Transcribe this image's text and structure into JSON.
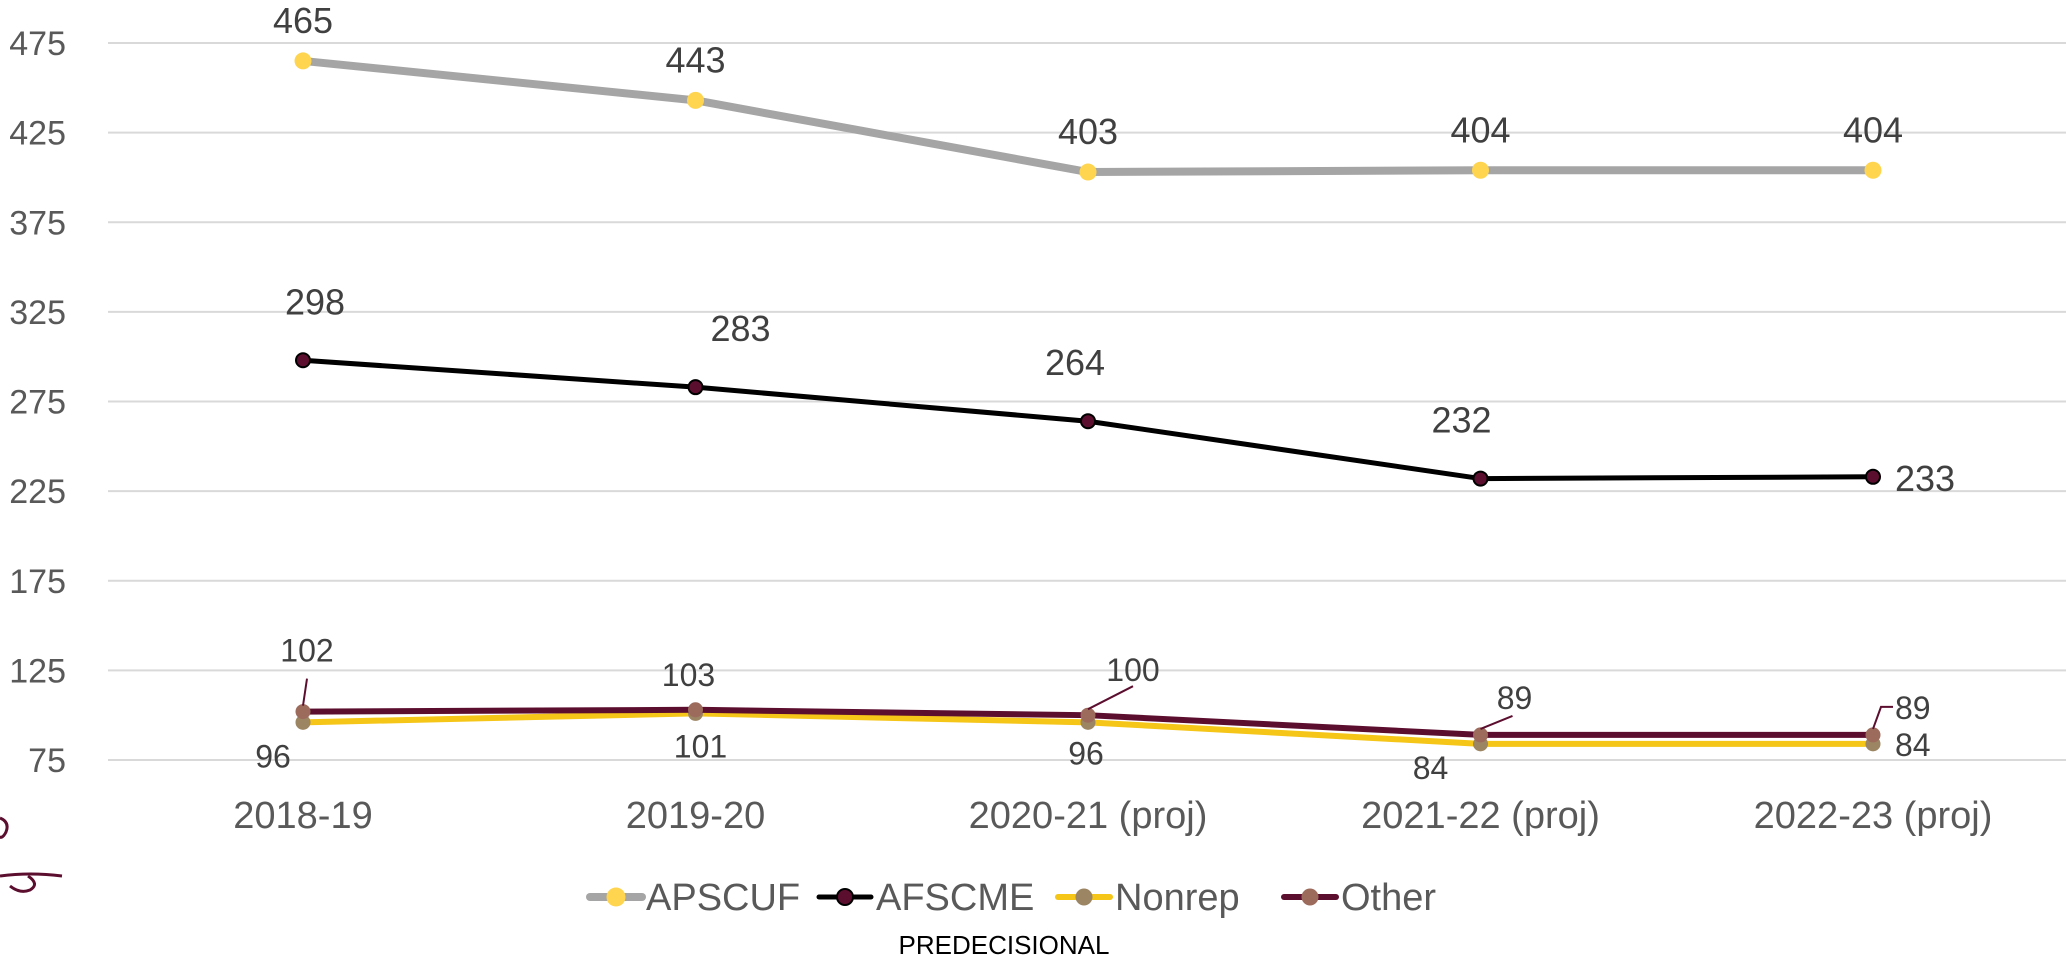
{
  "footer_text": "PREDECISIONAL",
  "chart_data": {
    "type": "line",
    "categories": [
      "2018-19",
      "2019-20",
      "2020-21 (proj)",
      "2021-22 (proj)",
      "2022-23 (proj)"
    ],
    "y_ticks": [
      75,
      125,
      175,
      225,
      275,
      325,
      375,
      425,
      475
    ],
    "ylim": [
      75,
      475
    ],
    "grid": true,
    "legend_position": "bottom",
    "series": [
      {
        "name": "APSCUF",
        "values": [
          465,
          443,
          403,
          404,
          404
        ],
        "line_color": "#A5A5A5",
        "marker_color": "#FFD54F"
      },
      {
        "name": "AFSCME",
        "values": [
          298,
          283,
          264,
          232,
          233
        ],
        "line_color": "#000000",
        "marker_color": "#5C0E2E"
      },
      {
        "name": "Nonrep",
        "values": [
          96,
          101,
          96,
          84,
          84
        ],
        "line_color": "#F5C518",
        "marker_color": "#9C8563"
      },
      {
        "name": "Other",
        "values": [
          102,
          103,
          100,
          89,
          89
        ],
        "line_color": "#5C0E2E",
        "marker_color": "#9C6B5C"
      }
    ]
  }
}
